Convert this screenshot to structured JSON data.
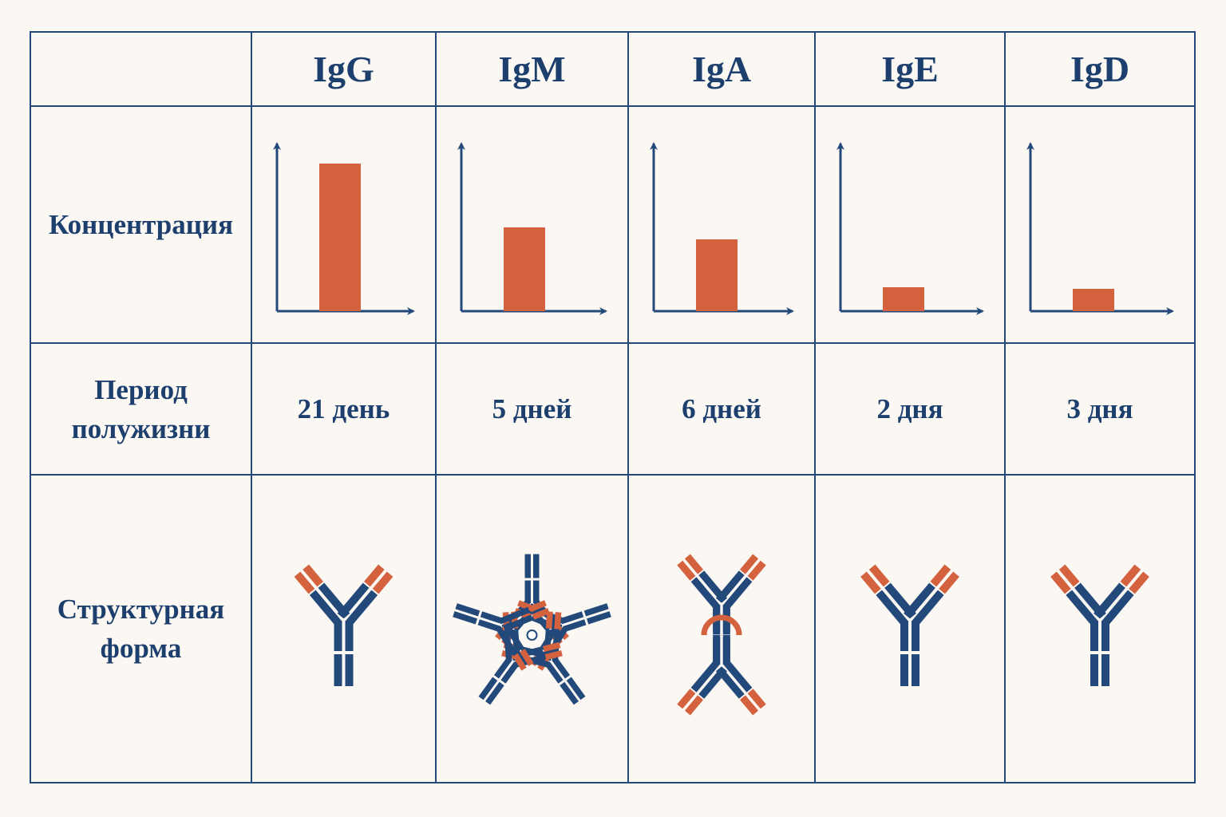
{
  "header": {
    "columns": [
      "IgG",
      "IgM",
      "IgA",
      "IgE",
      "IgD"
    ]
  },
  "rows": {
    "concentration": {
      "label": "Концентрация",
      "values": [
        185,
        105,
        90,
        30,
        28
      ],
      "ylim": [
        0,
        210
      ]
    },
    "half_life": {
      "label": "Период полужизни",
      "values": [
        "21 день",
        "5 дней",
        "6 дней",
        "2 дня",
        "3 дня"
      ]
    },
    "structure": {
      "label": "Структурная форма"
    }
  }
}
